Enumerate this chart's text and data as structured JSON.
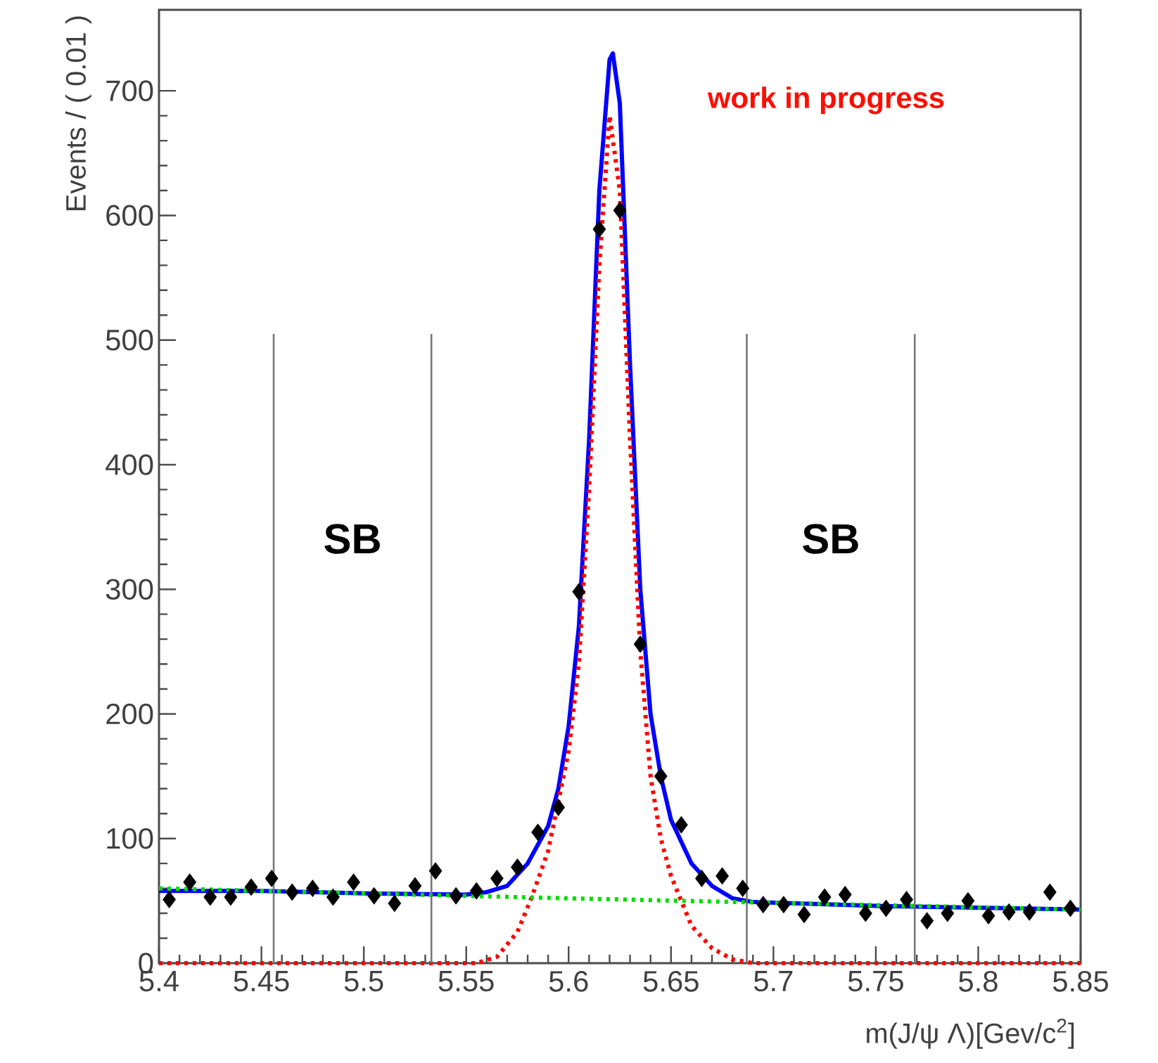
{
  "chart_data": {
    "type": "scatter",
    "xlabel": "m(J/ψ Λ)[Gev/c$^{2}$]",
    "ylabel": "Events / ( 0.01 )",
    "x": [
      5.405,
      5.415,
      5.425,
      5.435,
      5.445,
      5.455,
      5.465,
      5.475,
      5.485,
      5.495,
      5.505,
      5.515,
      5.525,
      5.535,
      5.545,
      5.555,
      5.565,
      5.575,
      5.585,
      5.595,
      5.605,
      5.615,
      5.625,
      5.635,
      5.645,
      5.655,
      5.665,
      5.675,
      5.685,
      5.695,
      5.705,
      5.715,
      5.725,
      5.735,
      5.745,
      5.755,
      5.765,
      5.775,
      5.785,
      5.795,
      5.805,
      5.815,
      5.825,
      5.835,
      5.845
    ],
    "series": [
      {
        "color": "#000000",
        "marker": "diamond",
        "values": [
          51,
          65,
          53,
          53,
          61,
          68,
          57,
          60,
          53,
          65,
          54,
          48,
          62,
          74,
          54,
          58,
          68,
          77,
          105,
          125,
          298,
          589,
          604,
          256,
          150,
          111,
          68,
          70,
          60,
          47,
          47,
          39,
          53,
          55,
          40,
          44,
          51,
          34,
          40,
          50,
          38,
          41,
          41,
          57,
          44
        ]
      },
      {
        "type": "line",
        "color": "#0000ff",
        "line_style": "solid",
        "x": [
          5.4,
          5.45,
          5.5,
          5.55,
          5.56,
          5.57,
          5.58,
          5.59,
          5.595,
          5.6,
          5.605,
          5.61,
          5.615,
          5.62,
          5.6216,
          5.625,
          5.63,
          5.635,
          5.64,
          5.645,
          5.65,
          5.66,
          5.67,
          5.68,
          5.69,
          5.75,
          5.85
        ],
        "values": [
          58,
          58,
          56,
          55,
          57,
          62,
          80,
          110,
          140,
          190,
          270,
          420,
          620,
          725,
          730,
          690,
          480,
          300,
          200,
          150,
          115,
          80,
          62,
          52,
          49,
          46,
          43
        ]
      },
      {
        "type": "line",
        "color": "#ff0000",
        "line_style": "dotted",
        "x": [
          5.4,
          5.555,
          5.565,
          5.575,
          5.582,
          5.59,
          5.6,
          5.605,
          5.61,
          5.615,
          5.62,
          5.625,
          5.63,
          5.635,
          5.64,
          5.645,
          5.65,
          5.66,
          5.67,
          5.68,
          5.69,
          5.85
        ],
        "values": [
          0,
          0,
          5,
          25,
          53,
          90,
          170,
          240,
          380,
          560,
          680,
          620,
          420,
          250,
          150,
          100,
          70,
          30,
          12,
          3,
          0,
          0
        ]
      },
      {
        "type": "line",
        "color": "#00dd00",
        "line_style": "dotted",
        "x": [
          5.4,
          5.6,
          5.85
        ],
        "values": [
          60,
          52,
          43
        ]
      }
    ],
    "xlim": [
      5.4,
      5.85
    ],
    "ylim": [
      0,
      765
    ],
    "xticks": [
      5.4,
      5.45,
      5.5,
      5.55,
      5.6,
      5.65,
      5.7,
      5.75,
      5.8,
      5.85
    ],
    "yticks": [
      0,
      100,
      200,
      300,
      400,
      500,
      600,
      700
    ],
    "ref_lines": [
      {
        "axis": "x",
        "value": 5.456,
        "color": "#777777"
      },
      {
        "axis": "x",
        "value": 5.533,
        "color": "#777777"
      },
      {
        "axis": "x",
        "value": 5.687,
        "color": "#777777"
      },
      {
        "axis": "x",
        "value": 5.769,
        "color": "#777777"
      }
    ],
    "annotations": [
      "work in progress",
      "SB",
      "SB"
    ],
    "grid": false
  }
}
